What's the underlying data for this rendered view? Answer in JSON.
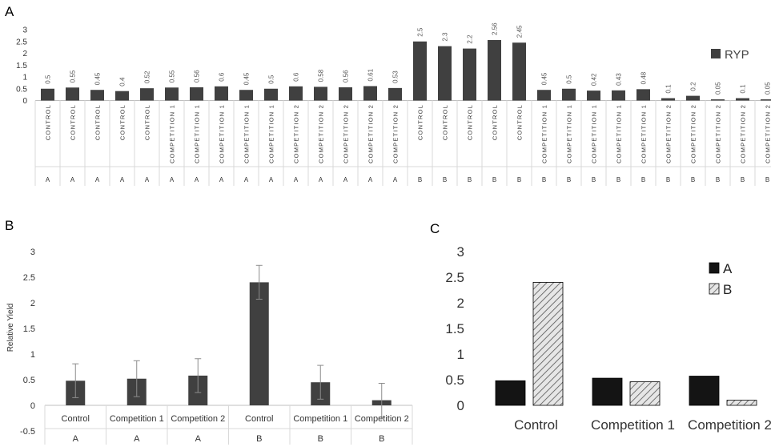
{
  "panels": [
    {
      "label": "A",
      "chart_data": {
        "type": "bar",
        "categories": [
          {
            "treatment": "CONTROL",
            "group": "A"
          },
          {
            "treatment": "CONTROL",
            "group": "A"
          },
          {
            "treatment": "CONTROL",
            "group": "A"
          },
          {
            "treatment": "CONTROL",
            "group": "A"
          },
          {
            "treatment": "CONTROL",
            "group": "A"
          },
          {
            "treatment": "COMPETITION 1",
            "group": "A"
          },
          {
            "treatment": "COMPETITION 1",
            "group": "A"
          },
          {
            "treatment": "COMPETITION 1",
            "group": "A"
          },
          {
            "treatment": "COMPETITION 1",
            "group": "A"
          },
          {
            "treatment": "COMPETITION 1",
            "group": "A"
          },
          {
            "treatment": "COMPETITION 2",
            "group": "A"
          },
          {
            "treatment": "COMPETITION 2",
            "group": "A"
          },
          {
            "treatment": "COMPETITION 2",
            "group": "A"
          },
          {
            "treatment": "COMPETITION 2",
            "group": "A"
          },
          {
            "treatment": "COMPETITION 2",
            "group": "A"
          },
          {
            "treatment": "CONTROL",
            "group": "B"
          },
          {
            "treatment": "CONTROL",
            "group": "B"
          },
          {
            "treatment": "CONTROL",
            "group": "B"
          },
          {
            "treatment": "CONTROL",
            "group": "B"
          },
          {
            "treatment": "CONTROL",
            "group": "B"
          },
          {
            "treatment": "COMPETITION 1",
            "group": "B"
          },
          {
            "treatment": "COMPETITION 1",
            "group": "B"
          },
          {
            "treatment": "COMPETITION 1",
            "group": "B"
          },
          {
            "treatment": "COMPETITION 1",
            "group": "B"
          },
          {
            "treatment": "COMPETITION 1",
            "group": "B"
          },
          {
            "treatment": "COMPETITION 2",
            "group": "B"
          },
          {
            "treatment": "COMPETITION 2",
            "group": "B"
          },
          {
            "treatment": "COMPETITION 2",
            "group": "B"
          },
          {
            "treatment": "COMPETITION 2",
            "group": "B"
          },
          {
            "treatment": "COMPETITION 2",
            "group": "B"
          }
        ],
        "series": [
          {
            "name": "RYP",
            "color": "#404040",
            "values": [
              0.5,
              0.55,
              0.45,
              0.4,
              0.52,
              0.55,
              0.56,
              0.6,
              0.45,
              0.5,
              0.6,
              0.58,
              0.56,
              0.61,
              0.53,
              2.5,
              2.3,
              2.2,
              2.56,
              2.45,
              0.45,
              0.5,
              0.42,
              0.43,
              0.48,
              0.1,
              0.2,
              0.05,
              0.1,
              0.05
            ]
          }
        ],
        "ylim": [
          0,
          3
        ],
        "yticks": [
          "0",
          "0.5",
          "1",
          "1.5",
          "2",
          "2.5",
          "3"
        ],
        "data_labels": true,
        "legend": "right"
      }
    },
    {
      "label": "B",
      "chart_data": {
        "type": "bar",
        "categories": [
          {
            "treatment": "Control",
            "group": "A"
          },
          {
            "treatment": "Competition 1",
            "group": "A"
          },
          {
            "treatment": "Competition 2",
            "group": "A"
          },
          {
            "treatment": "Control",
            "group": "B"
          },
          {
            "treatment": "Competition 1",
            "group": "B"
          },
          {
            "treatment": "Competition 2",
            "group": "B"
          }
        ],
        "series": [
          {
            "color": "#404040",
            "values": [
              0.48,
              0.52,
              0.58,
              2.4,
              0.45,
              0.1
            ],
            "error": [
              0.33,
              0.35,
              0.33,
              0.33,
              0.33,
              0.33
            ]
          }
        ],
        "ylabel": "Relative Yield",
        "ylim": [
          -0.5,
          3
        ],
        "yticks": [
          "-0.5",
          "0",
          "0.5",
          "1",
          "1.5",
          "2",
          "2.5",
          "3"
        ]
      }
    },
    {
      "label": "C",
      "chart_data": {
        "type": "bar",
        "categories": [
          "Control",
          "Competition 1",
          "Competition 2"
        ],
        "series": [
          {
            "name": "A",
            "color": "#141414",
            "pattern": "solid",
            "values": [
              0.48,
              0.53,
              0.57
            ]
          },
          {
            "name": "B",
            "color": "#d9d9d9",
            "pattern": "hatched",
            "values": [
              2.4,
              0.46,
              0.1
            ]
          }
        ],
        "ylim": [
          0,
          3
        ],
        "yticks": [
          "0",
          "0.5",
          "1",
          "1.5",
          "2",
          "2.5",
          "3"
        ],
        "legend": "top-right"
      }
    }
  ]
}
